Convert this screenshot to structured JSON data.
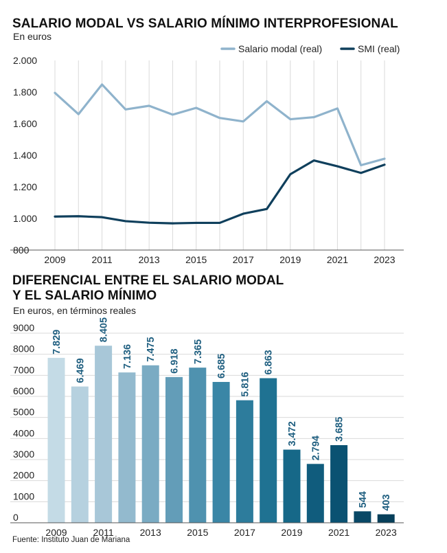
{
  "source": "Fuente: Instituto Juan de Mariana",
  "line_title": "SALARIO MODAL VS SALARIO MÍNIMO INTERPROFESIONAL",
  "line_subtitle": "En euros",
  "bar_title_line1": "DIFERENCIAL ENTRE EL SALARIO MODAL",
  "bar_title_line2": "Y EL SALARIO MÍNIMO",
  "bar_subtitle": "En euros, en términos reales",
  "colors": {
    "modal": "#8fb3cc",
    "smi": "#0f3f5c",
    "grid": "#d9d9d9",
    "axis": "#555555",
    "bar_gradient": [
      "#c4dbe6",
      "#a3c4d6",
      "#6aa1bb",
      "#3a86a6",
      "#1b6f8f",
      "#0b5576",
      "#073f5a"
    ]
  },
  "chart_data": [
    {
      "type": "line",
      "x": [
        2009,
        2010,
        2011,
        2012,
        2013,
        2014,
        2015,
        2016,
        2017,
        2018,
        2019,
        2020,
        2021,
        2022,
        2023
      ],
      "x_tick_labels": [
        "2009",
        "2011",
        "2013",
        "2015",
        "2017",
        "2019",
        "2021",
        "2023"
      ],
      "y_tick_labels": [
        "800",
        "1.000",
        "1.200",
        "1.400",
        "1.600",
        "1.800",
        "2.000"
      ],
      "ylim": [
        800,
        2000
      ],
      "grid": "vertical",
      "legend_position": "top-right",
      "series": [
        {
          "name": "Salario modal (real)",
          "values": [
            1795,
            1660,
            1848,
            1690,
            1713,
            1657,
            1700,
            1636,
            1614,
            1742,
            1628,
            1641,
            1696,
            1337,
            1378
          ]
        },
        {
          "name": "SMI (real)",
          "values": [
            1012,
            1014,
            1008,
            983,
            973,
            969,
            972,
            972,
            1030,
            1060,
            1280,
            1367,
            1330,
            1288,
            1340
          ]
        }
      ]
    },
    {
      "type": "bar",
      "categories": [
        "2009",
        "2010",
        "2011",
        "2012",
        "2013",
        "2014",
        "2015",
        "2016",
        "2017",
        "2018",
        "2019",
        "2020",
        "2021",
        "2022",
        "2023"
      ],
      "values": [
        7829,
        6469,
        8405,
        7136,
        7475,
        6918,
        7365,
        6685,
        5816,
        6863,
        3472,
        2794,
        3685,
        544,
        403
      ],
      "data_labels": [
        "7.829",
        "6.469",
        "8.405",
        "7.136",
        "7.475",
        "6.918",
        "7.365",
        "6.685",
        "5.816",
        "6.863",
        "3.472",
        "2.794",
        "3.685",
        "544",
        "403"
      ],
      "x_tick_labels": [
        "2009",
        "2011",
        "2013",
        "2015",
        "2017",
        "2019",
        "2021",
        "2023"
      ],
      "y_tick_labels": [
        "0",
        "1000",
        "2000",
        "3000",
        "4000",
        "5000",
        "6000",
        "7000",
        "8000",
        "9000"
      ],
      "ylim": [
        0,
        9000
      ],
      "grid": "horizontal"
    }
  ]
}
